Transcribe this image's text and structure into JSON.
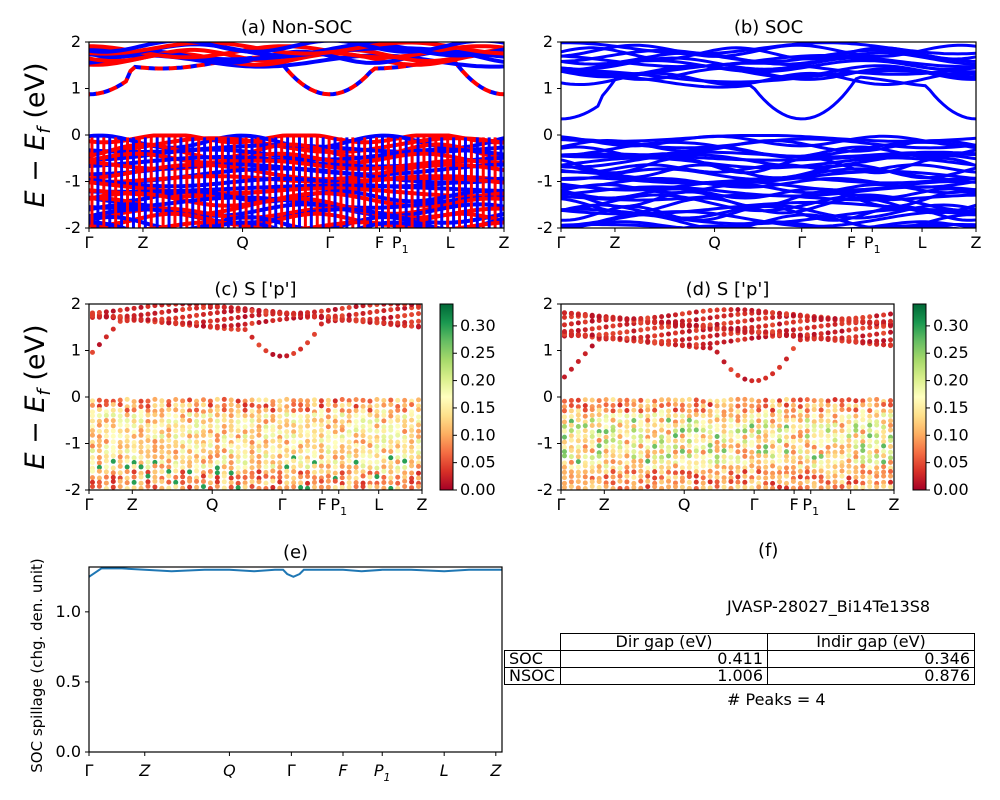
{
  "chart_data": [
    {
      "id": "a",
      "type": "line",
      "title": "(a) Non-SOC",
      "ylabel": "E − E_f (eV)",
      "ylim": [
        -2,
        2
      ],
      "yticks": [
        -2,
        -1,
        0,
        1,
        2
      ],
      "xtick_labels": [
        "Γ",
        "Z",
        "Q",
        "Γ",
        "F",
        "P1",
        "L",
        "Z"
      ],
      "xtick_positions": [
        0,
        0.13,
        0.37,
        0.58,
        0.7,
        0.75,
        0.87,
        1.0
      ],
      "colors": [
        "#ff0000",
        "#0000ff"
      ],
      "conduction_band_min_eV": 0.876,
      "valence_band_max_eV": 0.0
    },
    {
      "id": "b",
      "type": "line",
      "title": "(b) SOC",
      "ylim": [
        -2,
        2
      ],
      "yticks": [
        -2,
        -1,
        0,
        1,
        2
      ],
      "xtick_labels": [
        "Γ",
        "Z",
        "Q",
        "Γ",
        "F",
        "P1",
        "L",
        "Z"
      ],
      "xtick_positions": [
        0,
        0.13,
        0.37,
        0.58,
        0.7,
        0.75,
        0.87,
        1.0
      ],
      "colors": [
        "#0000ff"
      ],
      "conduction_band_min_eV": 0.346,
      "valence_band_max_eV": 0.0
    },
    {
      "id": "c",
      "type": "scatter",
      "title": "(c)  S ['p']",
      "ylabel": "E − E_f (eV)",
      "ylim": [
        -2,
        2
      ],
      "yticks": [
        -2,
        -1,
        0,
        1,
        2
      ],
      "xtick_labels": [
        "Γ",
        "Z",
        "Q",
        "Γ",
        "F",
        "P1",
        "L",
        "Z"
      ],
      "xtick_positions": [
        0,
        0.13,
        0.37,
        0.58,
        0.7,
        0.75,
        0.87,
        1.0
      ],
      "colorbar": {
        "range": [
          0,
          0.34
        ],
        "ticks": [
          "0.00",
          "0.05",
          "0.10",
          "0.15",
          "0.20",
          "0.25",
          "0.30"
        ],
        "colormap": "RdYlGn"
      }
    },
    {
      "id": "d",
      "type": "scatter",
      "title": "(d) S ['p']",
      "ylim": [
        -2,
        2
      ],
      "yticks": [
        -2,
        -1,
        0,
        1,
        2
      ],
      "xtick_labels": [
        "Γ",
        "Z",
        "Q",
        "Γ",
        "F",
        "P1",
        "L",
        "Z"
      ],
      "xtick_positions": [
        0,
        0.13,
        0.37,
        0.58,
        0.7,
        0.75,
        0.87,
        1.0
      ],
      "colorbar": {
        "range": [
          0,
          0.34
        ],
        "ticks": [
          "0.00",
          "0.05",
          "0.10",
          "0.15",
          "0.20",
          "0.25",
          "0.30"
        ],
        "colormap": "RdYlGn"
      }
    },
    {
      "id": "e",
      "type": "line",
      "title": "(e)",
      "ylabel": "SOC spillage (chg. den. unit)",
      "ylim": [
        0,
        1.32
      ],
      "yticks": [
        "0.0",
        "0.5",
        "1.0"
      ],
      "xtick_labels": [
        "Γ",
        "Z",
        "Q",
        "Γ",
        "F",
        "P1",
        "L",
        "Z"
      ],
      "xtick_positions": [
        0,
        0.135,
        0.34,
        0.49,
        0.615,
        0.71,
        0.86,
        0.985
      ],
      "series": [
        {
          "color": "#1f77b4",
          "x": [
            0,
            0.03,
            0.08,
            0.135,
            0.2,
            0.28,
            0.34,
            0.4,
            0.45,
            0.47,
            0.48,
            0.495,
            0.51,
            0.52,
            0.55,
            0.615,
            0.66,
            0.71,
            0.78,
            0.86,
            0.92,
            0.985,
            1.0
          ],
          "y": [
            1.25,
            1.31,
            1.31,
            1.3,
            1.29,
            1.3,
            1.3,
            1.29,
            1.3,
            1.3,
            1.27,
            1.25,
            1.27,
            1.3,
            1.3,
            1.3,
            1.29,
            1.3,
            1.3,
            1.29,
            1.3,
            1.3,
            1.3
          ]
        }
      ]
    }
  ],
  "panel_f": {
    "title": "(f)",
    "material_id": "JVASP-28027_Bi14Te13S8",
    "table": {
      "columns": [
        "Dir gap (eV)",
        "Indir gap (eV)"
      ],
      "rows": [
        {
          "label": "SOC",
          "dir_gap": "0.411",
          "indir_gap": "0.346"
        },
        {
          "label": "NSOC",
          "dir_gap": "1.006",
          "indir_gap": "0.876"
        }
      ]
    },
    "peaks_text": "# Peaks = 4"
  }
}
